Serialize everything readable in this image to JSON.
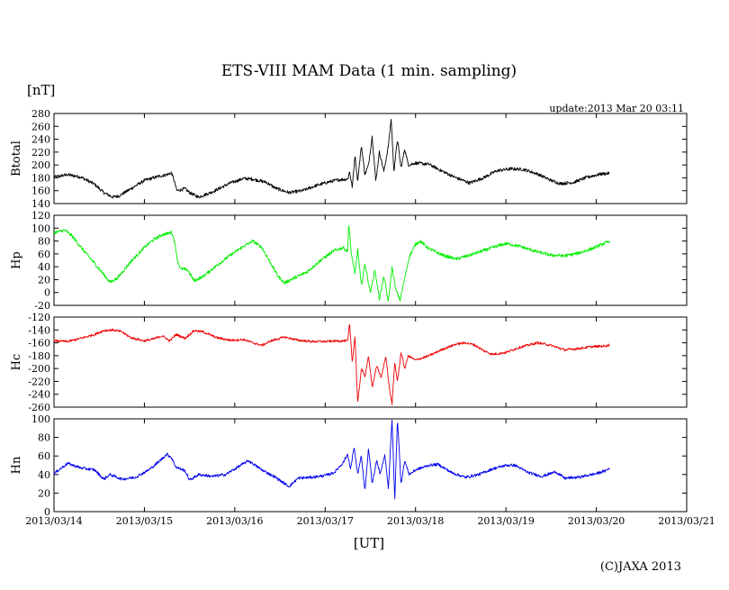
{
  "title": "ETS-VIII MAM Data (1 min. sampling)",
  "unit_label": "[nT]",
  "update_label": "update:2013 Mar 20 03:11",
  "xlabel": "[UT]",
  "credit": "(C)JAXA 2013",
  "chart_data": {
    "type": "line",
    "x_tick_labels": [
      "2013/03/14",
      "2013/03/15",
      "2013/03/16",
      "2013/03/17",
      "2013/03/18",
      "2013/03/19",
      "2013/03/20",
      "2013/03/21"
    ],
    "xlim": [
      0,
      7
    ],
    "x_unit": "days since 2013/03/14 00:00 UT",
    "panels": [
      {
        "name": "Btotal",
        "ylabel": "Btotal",
        "color": "#000000",
        "ylim": [
          140,
          280
        ],
        "y_ticks": [
          140,
          160,
          180,
          200,
          220,
          240,
          260,
          280
        ],
        "noise": 2.5,
        "points": [
          [
            0,
            181
          ],
          [
            0.15,
            185
          ],
          [
            0.3,
            181
          ],
          [
            0.45,
            170
          ],
          [
            0.55,
            157
          ],
          [
            0.65,
            150
          ],
          [
            0.72,
            152
          ],
          [
            0.85,
            163
          ],
          [
            1.0,
            176
          ],
          [
            1.15,
            182
          ],
          [
            1.25,
            185
          ],
          [
            1.3,
            188
          ],
          [
            1.33,
            175
          ],
          [
            1.36,
            160
          ],
          [
            1.45,
            163
          ],
          [
            1.5,
            157
          ],
          [
            1.6,
            150
          ],
          [
            1.75,
            158
          ],
          [
            1.95,
            172
          ],
          [
            2.1,
            179
          ],
          [
            2.2,
            178
          ],
          [
            2.35,
            173
          ],
          [
            2.45,
            164
          ],
          [
            2.6,
            157
          ],
          [
            2.75,
            160
          ],
          [
            2.9,
            168
          ],
          [
            3.05,
            174
          ],
          [
            3.15,
            177
          ],
          [
            3.25,
            178
          ],
          [
            3.27,
            190
          ],
          [
            3.3,
            165
          ],
          [
            3.33,
            215
          ],
          [
            3.36,
            175
          ],
          [
            3.4,
            230
          ],
          [
            3.44,
            185
          ],
          [
            3.48,
            200
          ],
          [
            3.52,
            245
          ],
          [
            3.56,
            175
          ],
          [
            3.6,
            220
          ],
          [
            3.65,
            190
          ],
          [
            3.7,
            230
          ],
          [
            3.73,
            272
          ],
          [
            3.76,
            190
          ],
          [
            3.8,
            240
          ],
          [
            3.84,
            195
          ],
          [
            3.88,
            225
          ],
          [
            3.92,
            200
          ],
          [
            4.0,
            203
          ],
          [
            4.15,
            201
          ],
          [
            4.3,
            190
          ],
          [
            4.45,
            180
          ],
          [
            4.6,
            172
          ],
          [
            4.75,
            180
          ],
          [
            4.9,
            191
          ],
          [
            5.05,
            194
          ],
          [
            5.2,
            193
          ],
          [
            5.35,
            186
          ],
          [
            5.5,
            176
          ],
          [
            5.6,
            171
          ],
          [
            5.75,
            173
          ],
          [
            5.9,
            181
          ],
          [
            6.05,
            186
          ],
          [
            6.15,
            187
          ]
        ]
      },
      {
        "name": "Hp",
        "ylabel": "Hp",
        "color": "#00ee00",
        "ylim": [
          -20,
          120
        ],
        "y_ticks": [
          -20,
          0,
          20,
          40,
          60,
          80,
          100,
          120
        ],
        "noise": 2.5,
        "points": [
          [
            0,
            93
          ],
          [
            0.12,
            97
          ],
          [
            0.2,
            88
          ],
          [
            0.3,
            70
          ],
          [
            0.45,
            45
          ],
          [
            0.55,
            28
          ],
          [
            0.62,
            16
          ],
          [
            0.7,
            22
          ],
          [
            0.85,
            48
          ],
          [
            1.0,
            70
          ],
          [
            1.1,
            82
          ],
          [
            1.2,
            90
          ],
          [
            1.27,
            92
          ],
          [
            1.3,
            94
          ],
          [
            1.33,
            82
          ],
          [
            1.37,
            48
          ],
          [
            1.4,
            37
          ],
          [
            1.48,
            35
          ],
          [
            1.55,
            18
          ],
          [
            1.65,
            25
          ],
          [
            1.8,
            42
          ],
          [
            1.95,
            58
          ],
          [
            2.1,
            72
          ],
          [
            2.2,
            80
          ],
          [
            2.3,
            70
          ],
          [
            2.4,
            45
          ],
          [
            2.48,
            25
          ],
          [
            2.55,
            15
          ],
          [
            2.65,
            22
          ],
          [
            2.8,
            32
          ],
          [
            2.95,
            50
          ],
          [
            3.1,
            65
          ],
          [
            3.2,
            70
          ],
          [
            3.25,
            63
          ],
          [
            3.26,
            108
          ],
          [
            3.29,
            60
          ],
          [
            3.33,
            28
          ],
          [
            3.36,
            68
          ],
          [
            3.4,
            10
          ],
          [
            3.44,
            45
          ],
          [
            3.5,
            0
          ],
          [
            3.55,
            35
          ],
          [
            3.6,
            -10
          ],
          [
            3.65,
            25
          ],
          [
            3.7,
            -15
          ],
          [
            3.74,
            40
          ],
          [
            3.78,
            5
          ],
          [
            3.83,
            -12
          ],
          [
            3.88,
            22
          ],
          [
            3.93,
            55
          ],
          [
            4.0,
            75
          ],
          [
            4.05,
            80
          ],
          [
            4.15,
            68
          ],
          [
            4.3,
            58
          ],
          [
            4.45,
            52
          ],
          [
            4.6,
            58
          ],
          [
            4.75,
            65
          ],
          [
            4.9,
            72
          ],
          [
            5.0,
            76
          ],
          [
            5.15,
            72
          ],
          [
            5.35,
            63
          ],
          [
            5.5,
            58
          ],
          [
            5.65,
            57
          ],
          [
            5.8,
            61
          ],
          [
            5.95,
            68
          ],
          [
            6.1,
            77
          ],
          [
            6.15,
            80
          ]
        ]
      },
      {
        "name": "Hc",
        "ylabel": "Hc",
        "color": "#ee0000",
        "ylim": [
          -260,
          -120
        ],
        "y_ticks": [
          -260,
          -240,
          -220,
          -200,
          -180,
          -160,
          -140,
          -120
        ],
        "noise": 1.8,
        "points": [
          [
            0,
            -157
          ],
          [
            0.15,
            -158
          ],
          [
            0.3,
            -153
          ],
          [
            0.45,
            -147
          ],
          [
            0.55,
            -141
          ],
          [
            0.65,
            -140
          ],
          [
            0.75,
            -143
          ],
          [
            0.85,
            -152
          ],
          [
            1.0,
            -157
          ],
          [
            1.1,
            -154
          ],
          [
            1.2,
            -149
          ],
          [
            1.28,
            -157
          ],
          [
            1.35,
            -147
          ],
          [
            1.45,
            -153
          ],
          [
            1.55,
            -141
          ],
          [
            1.65,
            -143
          ],
          [
            1.8,
            -152
          ],
          [
            1.95,
            -156
          ],
          [
            2.1,
            -155
          ],
          [
            2.2,
            -160
          ],
          [
            2.3,
            -164
          ],
          [
            2.4,
            -157
          ],
          [
            2.55,
            -151
          ],
          [
            2.7,
            -156
          ],
          [
            2.85,
            -158
          ],
          [
            3.0,
            -158
          ],
          [
            3.15,
            -157
          ],
          [
            3.25,
            -157
          ],
          [
            3.27,
            -130
          ],
          [
            3.3,
            -190
          ],
          [
            3.33,
            -150
          ],
          [
            3.36,
            -255
          ],
          [
            3.4,
            -200
          ],
          [
            3.44,
            -212
          ],
          [
            3.48,
            -180
          ],
          [
            3.52,
            -230
          ],
          [
            3.57,
            -195
          ],
          [
            3.62,
            -215
          ],
          [
            3.67,
            -180
          ],
          [
            3.71,
            -230
          ],
          [
            3.74,
            -255
          ],
          [
            3.77,
            -190
          ],
          [
            3.8,
            -220
          ],
          [
            3.84,
            -175
          ],
          [
            3.88,
            -200
          ],
          [
            3.92,
            -180
          ],
          [
            4.0,
            -187
          ],
          [
            4.15,
            -180
          ],
          [
            4.3,
            -170
          ],
          [
            4.45,
            -162
          ],
          [
            4.55,
            -160
          ],
          [
            4.65,
            -163
          ],
          [
            4.75,
            -172
          ],
          [
            4.85,
            -178
          ],
          [
            5.0,
            -175
          ],
          [
            5.15,
            -167
          ],
          [
            5.35,
            -160
          ],
          [
            5.5,
            -164
          ],
          [
            5.65,
            -171
          ],
          [
            5.8,
            -169
          ],
          [
            5.95,
            -166
          ],
          [
            6.1,
            -165
          ],
          [
            6.15,
            -163
          ]
        ]
      },
      {
        "name": "Hn",
        "ylabel": "Hn",
        "color": "#0000ee",
        "ylim": [
          0,
          100
        ],
        "y_ticks": [
          0,
          20,
          40,
          60,
          80,
          100
        ],
        "noise": 1.5,
        "points": [
          [
            0,
            41
          ],
          [
            0.15,
            52
          ],
          [
            0.3,
            47
          ],
          [
            0.45,
            45
          ],
          [
            0.55,
            35
          ],
          [
            0.62,
            40
          ],
          [
            0.75,
            35
          ],
          [
            0.9,
            37
          ],
          [
            1.05,
            45
          ],
          [
            1.15,
            53
          ],
          [
            1.25,
            62
          ],
          [
            1.3,
            58
          ],
          [
            1.35,
            48
          ],
          [
            1.45,
            44
          ],
          [
            1.5,
            34
          ],
          [
            1.6,
            40
          ],
          [
            1.75,
            38
          ],
          [
            1.9,
            40
          ],
          [
            2.05,
            49
          ],
          [
            2.15,
            55
          ],
          [
            2.3,
            45
          ],
          [
            2.45,
            37
          ],
          [
            2.6,
            27
          ],
          [
            2.7,
            36
          ],
          [
            2.85,
            37
          ],
          [
            3.0,
            39
          ],
          [
            3.1,
            42
          ],
          [
            3.2,
            53
          ],
          [
            3.25,
            62
          ],
          [
            3.28,
            45
          ],
          [
            3.32,
            70
          ],
          [
            3.36,
            40
          ],
          [
            3.4,
            60
          ],
          [
            3.44,
            22
          ],
          [
            3.48,
            68
          ],
          [
            3.52,
            30
          ],
          [
            3.57,
            55
          ],
          [
            3.61,
            40
          ],
          [
            3.66,
            62
          ],
          [
            3.7,
            25
          ],
          [
            3.74,
            100
          ],
          [
            3.77,
            12
          ],
          [
            3.8,
            100
          ],
          [
            3.84,
            30
          ],
          [
            3.88,
            55
          ],
          [
            3.93,
            40
          ],
          [
            4.0,
            45
          ],
          [
            4.15,
            50
          ],
          [
            4.25,
            51
          ],
          [
            4.4,
            42
          ],
          [
            4.55,
            37
          ],
          [
            4.7,
            40
          ],
          [
            4.85,
            46
          ],
          [
            5.0,
            50
          ],
          [
            5.1,
            50
          ],
          [
            5.25,
            42
          ],
          [
            5.4,
            38
          ],
          [
            5.55,
            43
          ],
          [
            5.65,
            36
          ],
          [
            5.8,
            37
          ],
          [
            6.0,
            41
          ],
          [
            6.1,
            44
          ],
          [
            6.15,
            47
          ]
        ]
      }
    ]
  }
}
